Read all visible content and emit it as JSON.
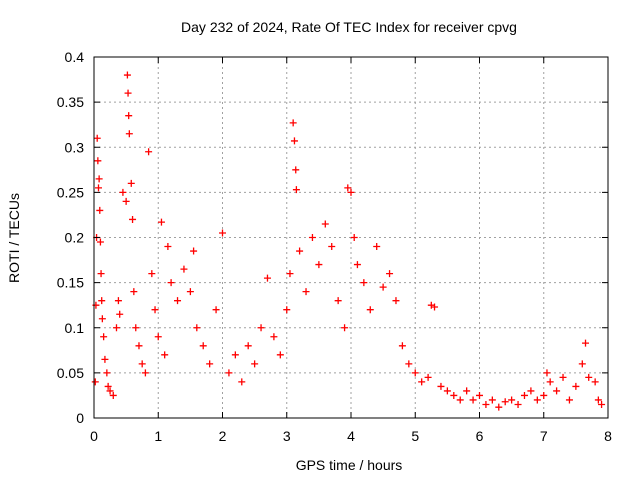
{
  "chart_data": {
    "type": "scatter",
    "title": "Day 232 of 2024, Rate Of TEC Index for receiver cpvg",
    "xlabel": "GPS time / hours",
    "ylabel": "ROTI / TECUs",
    "xlim": [
      0,
      8
    ],
    "ylim": [
      0,
      0.4
    ],
    "x_ticks": [
      0,
      1,
      2,
      3,
      4,
      5,
      6,
      7,
      8
    ],
    "x_tick_labels": [
      "0",
      "1",
      "2",
      "3",
      "4",
      "5",
      "6",
      "7",
      "8"
    ],
    "y_ticks": [
      0,
      0.05,
      0.1,
      0.15,
      0.2,
      0.25,
      0.3,
      0.35,
      0.4
    ],
    "y_tick_labels": [
      "0",
      "0.05",
      "0.1",
      "0.15",
      "0.2",
      "0.25",
      "0.3",
      "0.35",
      "0.4"
    ],
    "grid": true,
    "marker": "+",
    "color": "#ff0000",
    "series": [
      {
        "name": "ROTI",
        "points": [
          [
            0.02,
            0.04
          ],
          [
            0.03,
            0.125
          ],
          [
            0.04,
            0.2
          ],
          [
            0.05,
            0.31
          ],
          [
            0.06,
            0.285
          ],
          [
            0.07,
            0.255
          ],
          [
            0.08,
            0.265
          ],
          [
            0.09,
            0.23
          ],
          [
            0.1,
            0.195
          ],
          [
            0.11,
            0.16
          ],
          [
            0.12,
            0.13
          ],
          [
            0.13,
            0.11
          ],
          [
            0.15,
            0.09
          ],
          [
            0.17,
            0.065
          ],
          [
            0.2,
            0.05
          ],
          [
            0.22,
            0.035
          ],
          [
            0.25,
            0.03
          ],
          [
            0.3,
            0.025
          ],
          [
            0.35,
            0.1
          ],
          [
            0.38,
            0.13
          ],
          [
            0.4,
            0.115
          ],
          [
            0.45,
            0.25
          ],
          [
            0.5,
            0.24
          ],
          [
            0.52,
            0.38
          ],
          [
            0.53,
            0.36
          ],
          [
            0.54,
            0.335
          ],
          [
            0.55,
            0.315
          ],
          [
            0.58,
            0.26
          ],
          [
            0.6,
            0.22
          ],
          [
            0.62,
            0.14
          ],
          [
            0.65,
            0.1
          ],
          [
            0.7,
            0.08
          ],
          [
            0.75,
            0.06
          ],
          [
            0.8,
            0.05
          ],
          [
            0.85,
            0.295
          ],
          [
            0.9,
            0.16
          ],
          [
            0.95,
            0.12
          ],
          [
            1.0,
            0.09
          ],
          [
            1.05,
            0.217
          ],
          [
            1.1,
            0.07
          ],
          [
            1.15,
            0.19
          ],
          [
            1.2,
            0.15
          ],
          [
            1.3,
            0.13
          ],
          [
            1.4,
            0.165
          ],
          [
            1.5,
            0.14
          ],
          [
            1.55,
            0.185
          ],
          [
            1.6,
            0.1
          ],
          [
            1.7,
            0.08
          ],
          [
            1.8,
            0.06
          ],
          [
            1.9,
            0.12
          ],
          [
            2.0,
            0.205
          ],
          [
            2.1,
            0.05
          ],
          [
            2.2,
            0.07
          ],
          [
            2.3,
            0.04
          ],
          [
            2.4,
            0.08
          ],
          [
            2.5,
            0.06
          ],
          [
            2.6,
            0.1
          ],
          [
            2.7,
            0.155
          ],
          [
            2.8,
            0.09
          ],
          [
            2.9,
            0.07
          ],
          [
            3.0,
            0.12
          ],
          [
            3.05,
            0.16
          ],
          [
            3.1,
            0.327
          ],
          [
            3.12,
            0.307
          ],
          [
            3.14,
            0.275
          ],
          [
            3.15,
            0.253
          ],
          [
            3.2,
            0.185
          ],
          [
            3.3,
            0.14
          ],
          [
            3.4,
            0.2
          ],
          [
            3.5,
            0.17
          ],
          [
            3.6,
            0.215
          ],
          [
            3.7,
            0.19
          ],
          [
            3.8,
            0.13
          ],
          [
            3.9,
            0.1
          ],
          [
            3.95,
            0.255
          ],
          [
            4.0,
            0.25
          ],
          [
            4.05,
            0.2
          ],
          [
            4.1,
            0.17
          ],
          [
            4.2,
            0.15
          ],
          [
            4.3,
            0.12
          ],
          [
            4.4,
            0.19
          ],
          [
            4.5,
            0.145
          ],
          [
            4.6,
            0.16
          ],
          [
            4.7,
            0.13
          ],
          [
            4.8,
            0.08
          ],
          [
            4.9,
            0.06
          ],
          [
            5.0,
            0.05
          ],
          [
            5.1,
            0.04
          ],
          [
            5.2,
            0.045
          ],
          [
            5.25,
            0.125
          ],
          [
            5.3,
            0.123
          ],
          [
            5.4,
            0.035
          ],
          [
            5.5,
            0.03
          ],
          [
            5.6,
            0.025
          ],
          [
            5.7,
            0.02
          ],
          [
            5.8,
            0.03
          ],
          [
            5.9,
            0.02
          ],
          [
            6.0,
            0.025
          ],
          [
            6.1,
            0.015
          ],
          [
            6.2,
            0.02
          ],
          [
            6.3,
            0.012
          ],
          [
            6.4,
            0.018
          ],
          [
            6.5,
            0.02
          ],
          [
            6.6,
            0.015
          ],
          [
            6.7,
            0.025
          ],
          [
            6.8,
            0.03
          ],
          [
            6.9,
            0.02
          ],
          [
            7.0,
            0.025
          ],
          [
            7.05,
            0.05
          ],
          [
            7.1,
            0.04
          ],
          [
            7.2,
            0.03
          ],
          [
            7.3,
            0.045
          ],
          [
            7.4,
            0.02
          ],
          [
            7.5,
            0.035
          ],
          [
            7.6,
            0.06
          ],
          [
            7.65,
            0.083
          ],
          [
            7.7,
            0.045
          ],
          [
            7.8,
            0.04
          ],
          [
            7.85,
            0.02
          ],
          [
            7.9,
            0.015
          ]
        ]
      }
    ]
  }
}
